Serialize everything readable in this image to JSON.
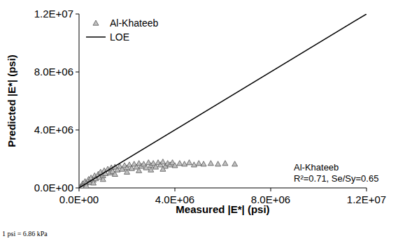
{
  "chart_data": {
    "type": "scatter",
    "x_label": "Measured |E*| (psi)",
    "y_label": "Predicted |E*| (psi)",
    "annotations": [
      "Al-Khateeb",
      "R²=0.71, Se/Sy=0.65",
      "1 psi = 6.86 kPa"
    ],
    "xlim": [
      0,
      12000000
    ],
    "ylim": [
      0,
      12000000
    ],
    "xticks": [
      {
        "value": 0,
        "label": "0.0E+00"
      },
      {
        "value": 4000000,
        "label": "4.0E+06"
      },
      {
        "value": 8000000,
        "label": "8.0E+06"
      },
      {
        "value": 12000000,
        "label": "1.2E+07"
      }
    ],
    "yticks": [
      {
        "value": 0,
        "label": "0.0E+00"
      },
      {
        "value": 4000000,
        "label": "4.0E+06"
      },
      {
        "value": 8000000,
        "label": "8.0E+06"
      },
      {
        "value": 12000000,
        "label": "1.2E+07"
      }
    ],
    "grid": false,
    "legend": "top-left",
    "series": [
      {
        "name": "Al-Khateeb",
        "type": "scatter",
        "marker": "triangle",
        "color": "#c0c0c0",
        "x": [
          50000,
          100000,
          150000,
          200000,
          250000,
          300000,
          400000,
          450000,
          500000,
          600000,
          650000,
          700000,
          800000,
          850000,
          900000,
          1000000,
          1050000,
          1100000,
          1200000,
          1300000,
          1350000,
          1400000,
          1500000,
          1600000,
          1700000,
          1800000,
          1900000,
          2000000,
          2100000,
          2200000,
          2300000,
          2400000,
          2500000,
          2600000,
          2700000,
          2800000,
          2900000,
          3000000,
          3100000,
          3200000,
          3300000,
          3400000,
          3500000,
          3600000,
          3700000,
          3800000,
          3900000,
          4000000,
          4200000,
          4400000,
          4600000,
          4800000,
          5000000,
          5200000,
          5500000,
          5800000,
          6100000,
          6500000,
          80000,
          120000,
          300000,
          600000,
          1000000,
          1500000,
          2000000,
          2500000,
          3000000,
          3500000
        ],
        "values": [
          60000,
          150000,
          300000,
          250000,
          450000,
          350000,
          600000,
          400000,
          700000,
          550000,
          850000,
          650000,
          950000,
          750000,
          1100000,
          850000,
          1200000,
          1000000,
          1300000,
          1050000,
          1400000,
          1150000,
          1450000,
          1250000,
          1500000,
          1300000,
          1550000,
          1400000,
          1600000,
          1350000,
          1650000,
          1450000,
          1700000,
          1500000,
          1650000,
          1400000,
          1750000,
          1550000,
          1700000,
          1450000,
          1750000,
          1600000,
          1800000,
          1500000,
          1700000,
          1600000,
          1750000,
          1550000,
          1700000,
          1650000,
          1750000,
          1600000,
          1700000,
          1650000,
          1700000,
          1650000,
          1700000,
          1650000,
          20000,
          80000,
          150000,
          350000,
          600000,
          950000,
          1100000,
          1200000,
          1250000,
          1300000
        ]
      },
      {
        "name": "LOE",
        "type": "line",
        "line_style": "solid",
        "color": "#000000",
        "x": [
          0,
          12000000
        ],
        "values": [
          0,
          12000000
        ]
      }
    ]
  }
}
